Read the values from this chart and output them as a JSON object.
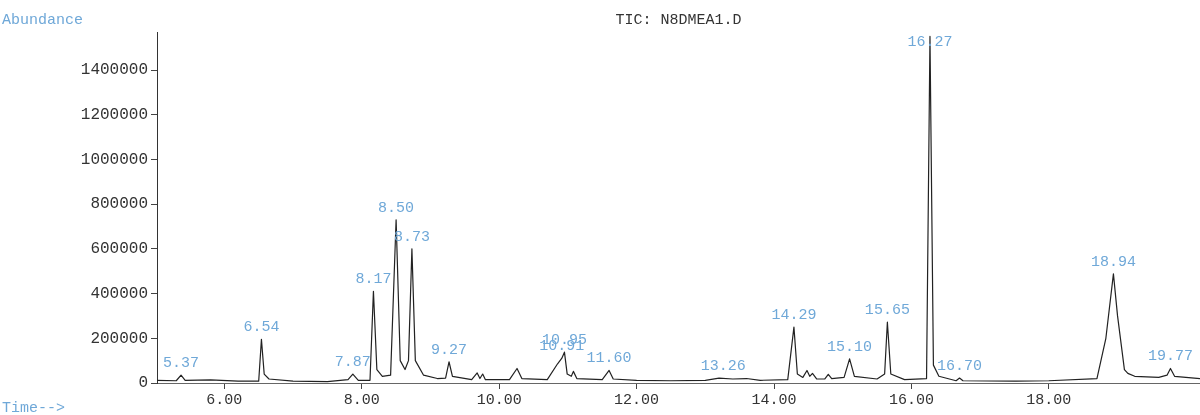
{
  "chart_data": {
    "type": "line",
    "title": "TIC: N8DMEA1.D",
    "xlabel": "Time-->",
    "ylabel": "Abundance",
    "x": [
      5.02,
      5.3,
      5.37,
      5.43,
      5.8,
      6.2,
      6.5,
      6.54,
      6.58,
      6.65,
      7.0,
      7.5,
      7.8,
      7.87,
      7.95,
      8.12,
      8.17,
      8.22,
      8.3,
      8.42,
      8.5,
      8.56,
      8.63,
      8.68,
      8.73,
      8.78,
      8.9,
      9.1,
      9.22,
      9.27,
      9.32,
      9.6,
      9.68,
      9.72,
      9.76,
      9.8,
      10.15,
      10.26,
      10.33,
      10.7,
      10.85,
      10.91,
      10.95,
      10.99,
      11.05,
      11.08,
      11.13,
      11.5,
      11.6,
      11.66,
      12.0,
      12.5,
      13.0,
      13.2,
      13.4,
      13.6,
      13.8,
      14.2,
      14.29,
      14.34,
      14.42,
      14.48,
      14.52,
      14.56,
      14.62,
      14.74,
      14.79,
      14.84,
      15.02,
      15.1,
      15.17,
      15.5,
      15.61,
      15.65,
      15.7,
      15.9,
      16.22,
      16.27,
      16.32,
      16.4,
      16.65,
      16.7,
      16.75,
      17.5,
      18.0,
      18.7,
      18.83,
      18.94,
      19.0,
      19.1,
      19.15,
      19.25,
      19.6,
      19.72,
      19.77,
      19.83,
      20.2
    ],
    "series": [
      {
        "color": "#222222",
        "values": [
          12000,
          10000,
          35000,
          12000,
          14000,
          8000,
          8000,
          195000,
          40000,
          18000,
          8000,
          6000,
          15000,
          40000,
          12000,
          12000,
          410000,
          60000,
          30000,
          35000,
          730000,
          100000,
          60000,
          100000,
          600000,
          100000,
          35000,
          20000,
          22000,
          95000,
          30000,
          15000,
          45000,
          20000,
          40000,
          15000,
          15000,
          65000,
          20000,
          15000,
          86000,
          110000,
          138000,
          40000,
          30000,
          52000,
          20000,
          15000,
          56000,
          18000,
          12000,
          10000,
          12000,
          22000,
          18000,
          20000,
          12000,
          15000,
          250000,
          40000,
          25000,
          56000,
          30000,
          43000,
          18000,
          18000,
          39000,
          20000,
          25000,
          108000,
          30000,
          18000,
          40000,
          272000,
          40000,
          15000,
          20000,
          1550000,
          80000,
          30000,
          10000,
          22000,
          10000,
          8000,
          10000,
          20000,
          200000,
          488000,
          300000,
          60000,
          43000,
          30000,
          25000,
          35000,
          65000,
          30000,
          20000
        ]
      }
    ],
    "xlim": [
      5.02,
      20.2
    ],
    "ylim": [
      0,
      1570000
    ],
    "xticks": [
      {
        "value": 6,
        "label": "6.00"
      },
      {
        "value": 8,
        "label": "8.00"
      },
      {
        "value": 10,
        "label": "10.00"
      },
      {
        "value": 12,
        "label": "12.00"
      },
      {
        "value": 14,
        "label": "14.00"
      },
      {
        "value": 16,
        "label": "16.00"
      },
      {
        "value": 18,
        "label": "18.00"
      }
    ],
    "yticks": [
      0,
      200000,
      400000,
      600000,
      800000,
      1000000,
      1200000,
      1400000
    ],
    "grid": false,
    "legend": false,
    "marker": "none",
    "line_style": "solid",
    "annotations": [
      {
        "text": "5.37",
        "x": 5.37,
        "y": 35000
      },
      {
        "text": "6.54",
        "x": 6.54,
        "y": 195000
      },
      {
        "text": "7.87",
        "x": 7.87,
        "y": 40000
      },
      {
        "text": "8.17",
        "x": 8.17,
        "y": 410000
      },
      {
        "text": "8.50",
        "x": 8.5,
        "y": 730000
      },
      {
        "text": "8.73",
        "x": 8.73,
        "y": 600000
      },
      {
        "text": "9.27",
        "x": 9.27,
        "y": 95000
      },
      {
        "text": "10.91",
        "x": 10.91,
        "y": 110000
      },
      {
        "text": "10.95",
        "x": 10.95,
        "y": 138000
      },
      {
        "text": "11.60",
        "x": 11.6,
        "y": 56000
      },
      {
        "text": "13.26",
        "x": 13.26,
        "y": 22000
      },
      {
        "text": "14.29",
        "x": 14.29,
        "y": 250000
      },
      {
        "text": "15.10",
        "x": 15.1,
        "y": 108000
      },
      {
        "text": "15.65",
        "x": 15.65,
        "y": 272000
      },
      {
        "text": "16.27",
        "x": 16.27,
        "y": 1550000
      },
      {
        "text": "16.70",
        "x": 16.7,
        "y": 22000
      },
      {
        "text": "18.94",
        "x": 18.94,
        "y": 488000
      },
      {
        "text": "19.77",
        "x": 19.77,
        "y": 65000
      }
    ]
  }
}
